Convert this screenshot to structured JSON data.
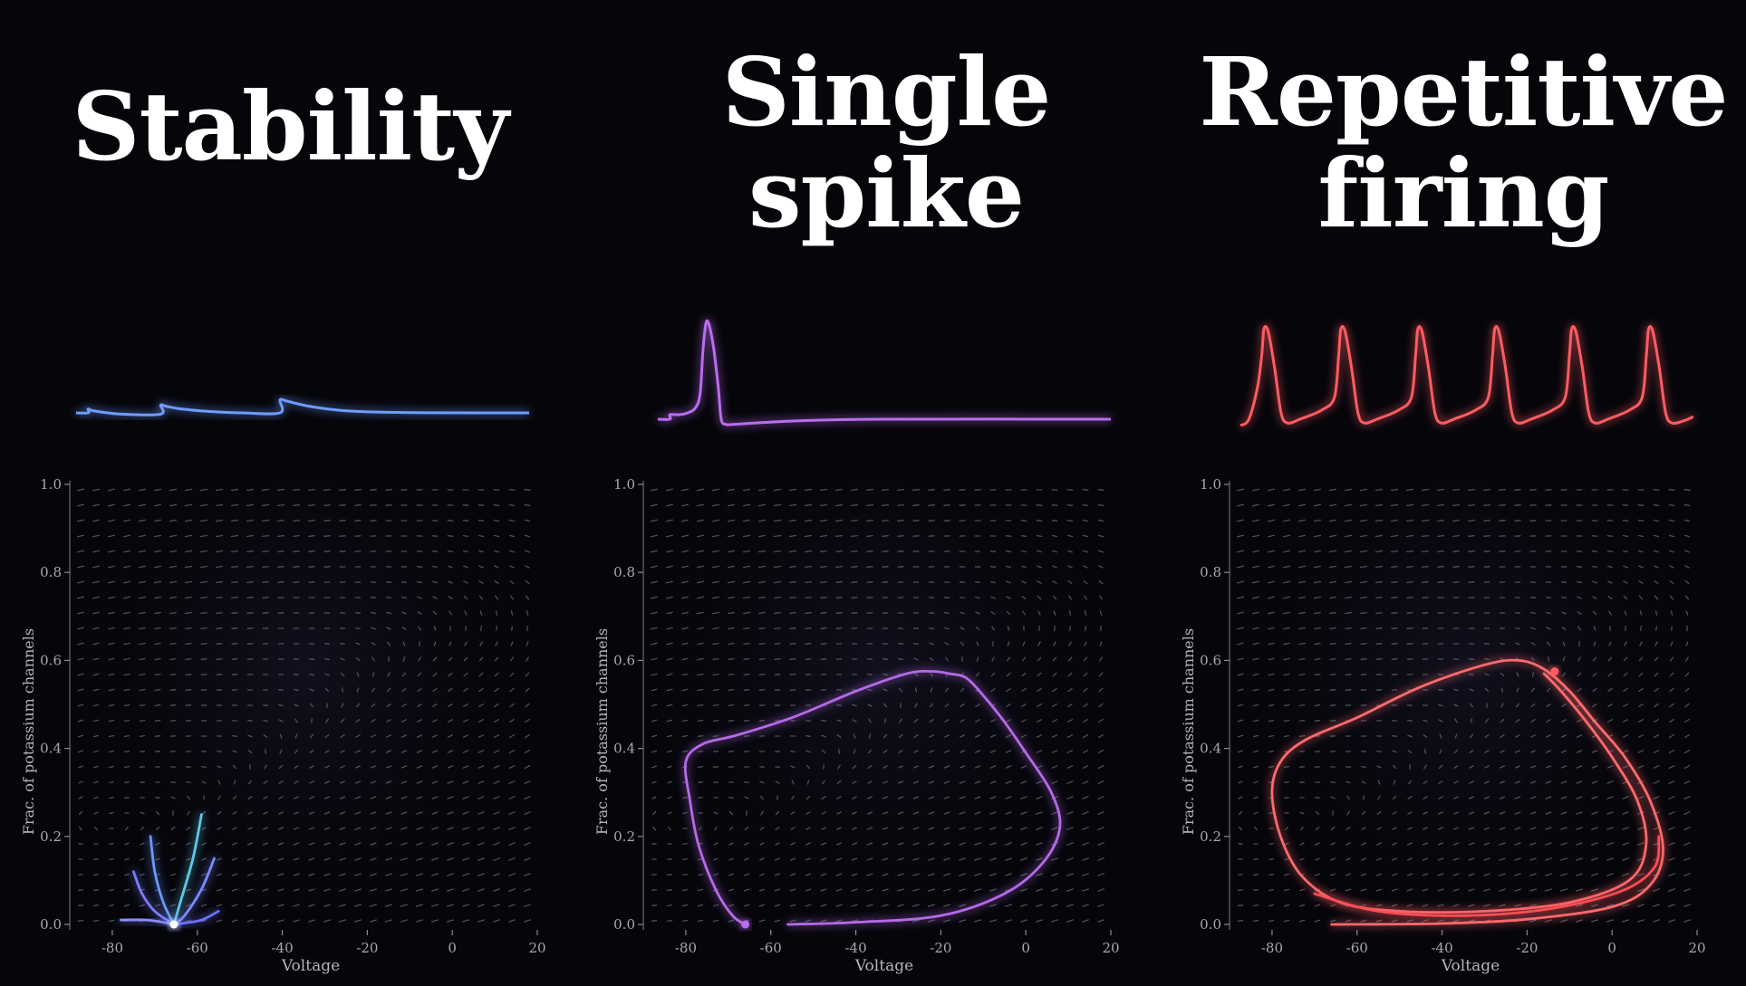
{
  "chart_data": [
    {
      "type": "line",
      "title_lines": [
        "Stability"
      ],
      "xlabel": "Voltage",
      "ylabel": "Frac. of potassium channels",
      "xlim": [
        -90,
        20
      ],
      "ylim": [
        0,
        1.0
      ],
      "xticks": [
        "-80",
        "-60",
        "-40",
        "-20",
        "0",
        "20"
      ],
      "yticks": [
        "0.0",
        "0.2",
        "0.4",
        "0.6",
        "0.8",
        "1.0"
      ],
      "grid": false,
      "color": "#6f9bff",
      "trace": [
        [
          0,
          0
        ],
        [
          8,
          0
        ],
        [
          8,
          3
        ],
        [
          12,
          1.5
        ],
        [
          30,
          -1
        ],
        [
          56,
          -1
        ],
        [
          56,
          6
        ],
        [
          60,
          5
        ],
        [
          70,
          3
        ],
        [
          90,
          1
        ],
        [
          110,
          0
        ],
        [
          135,
          0
        ],
        [
          135,
          10
        ],
        [
          140,
          9
        ],
        [
          155,
          5
        ],
        [
          175,
          2
        ],
        [
          200,
          0.6
        ],
        [
          240,
          0.1
        ],
        [
          300,
          0
        ]
      ],
      "trajectories": [
        {
          "color": "#8c8cff",
          "points": [
            [
              -78,
              0.01
            ],
            [
              -72,
              0.01
            ],
            [
              -68,
              0.005
            ],
            [
              -65.5,
              0
            ]
          ]
        },
        {
          "color": "#7b7cff",
          "points": [
            [
              -75,
              0.12
            ],
            [
              -73,
              0.07
            ],
            [
              -70,
              0.03
            ],
            [
              -65.5,
              0
            ]
          ]
        },
        {
          "color": "#6a98ff",
          "points": [
            [
              -71,
              0.2
            ],
            [
              -70,
              0.12
            ],
            [
              -68,
              0.05
            ],
            [
              -65.5,
              0
            ]
          ]
        },
        {
          "color": "#5fc8e6",
          "points": [
            [
              -59,
              0.25
            ],
            [
              -61,
              0.15
            ],
            [
              -64,
              0.05
            ],
            [
              -65.5,
              0
            ]
          ]
        },
        {
          "color": "#7a8cff",
          "points": [
            [
              -56,
              0.15
            ],
            [
              -59,
              0.08
            ],
            [
              -63,
              0.02
            ],
            [
              -65.5,
              0
            ]
          ]
        },
        {
          "color": "#6c70ff",
          "points": [
            [
              -55,
              0.03
            ],
            [
              -59,
              0.01
            ],
            [
              -63,
              0.003
            ],
            [
              -65.5,
              0
            ]
          ]
        }
      ],
      "fixed_point": [
        -65.5,
        0
      ]
    },
    {
      "type": "line",
      "title_lines": [
        "Single",
        "spike"
      ],
      "xlabel": "Voltage",
      "ylabel": "Frac. of potassium channels",
      "xlim": [
        -90,
        20
      ],
      "ylim": [
        0,
        1.0
      ],
      "xticks": [
        "-80",
        "-60",
        "-40",
        "-20",
        "0",
        "20"
      ],
      "yticks": [
        "0.0",
        "0.2",
        "0.4",
        "0.6",
        "0.8",
        "1.0"
      ],
      "grid": false,
      "color": "#bb6cf0",
      "trace": [
        [
          0,
          0
        ],
        [
          8,
          0
        ],
        [
          8,
          3.5
        ],
        [
          14,
          3.5
        ],
        [
          20,
          5
        ],
        [
          25,
          9
        ],
        [
          28,
          20
        ],
        [
          30,
          55
        ],
        [
          32,
          75
        ],
        [
          34,
          73
        ],
        [
          37,
          55
        ],
        [
          40,
          25
        ],
        [
          42,
          0
        ],
        [
          45,
          -4
        ],
        [
          50,
          -4
        ],
        [
          70,
          -2.5
        ],
        [
          100,
          -1
        ],
        [
          150,
          0
        ],
        [
          300,
          0
        ]
      ],
      "trajectories": [
        {
          "color": "#b56ae8",
          "points": [
            [
              -56,
              0
            ],
            [
              -40,
              0.005
            ],
            [
              -20,
              0.02
            ],
            [
              -5,
              0.07
            ],
            [
              4,
              0.14
            ],
            [
              8,
              0.22
            ],
            [
              6,
              0.3
            ],
            [
              0,
              0.39
            ],
            [
              -5,
              0.46
            ],
            [
              -10,
              0.52
            ],
            [
              -14,
              0.56
            ],
            [
              -18,
              0.57
            ],
            [
              -22,
              0.575
            ],
            [
              -28,
              0.57
            ],
            [
              -40,
              0.53
            ],
            [
              -55,
              0.47
            ],
            [
              -68,
              0.43
            ],
            [
              -76,
              0.41
            ],
            [
              -80,
              0.37
            ],
            [
              -79,
              0.28
            ],
            [
              -77,
              0.18
            ],
            [
              -73,
              0.08
            ],
            [
              -69,
              0.02
            ],
            [
              -66,
              0
            ]
          ]
        }
      ],
      "fixed_point": [
        -66,
        0
      ]
    },
    {
      "type": "line",
      "title_lines": [
        "Repetitive",
        "firing"
      ],
      "xlabel": "Voltage",
      "ylabel": "Frac. of potassium channels",
      "xlim": [
        -90,
        20
      ],
      "ylim": [
        0,
        1.0
      ],
      "xticks": [
        "-80",
        "-60",
        "-40",
        "-20",
        "0",
        "20"
      ],
      "yticks": [
        "0.0",
        "0.2",
        "0.4",
        "0.6",
        "0.8",
        "1.0"
      ],
      "grid": false,
      "color": "#ff5c62",
      "trace": [
        [
          0,
          0
        ],
        [
          4,
          5
        ],
        [
          8,
          30
        ],
        [
          10,
          55
        ],
        [
          11,
          75
        ],
        [
          13,
          73
        ],
        [
          16,
          45
        ],
        [
          19,
          10
        ],
        [
          22,
          2
        ],
        [
          28,
          5
        ],
        [
          38,
          12
        ],
        [
          44,
          22
        ],
        [
          46,
          55
        ],
        [
          47,
          75
        ],
        [
          49,
          73
        ],
        [
          52,
          45
        ],
        [
          55,
          10
        ],
        [
          58,
          2
        ],
        [
          64,
          5
        ],
        [
          74,
          12
        ],
        [
          80,
          22
        ],
        [
          82,
          55
        ],
        [
          83,
          75
        ],
        [
          85,
          73
        ],
        [
          88,
          45
        ],
        [
          91,
          10
        ],
        [
          94,
          2
        ],
        [
          100,
          5
        ],
        [
          110,
          12
        ],
        [
          116,
          22
        ],
        [
          118,
          55
        ],
        [
          119,
          75
        ],
        [
          121,
          73
        ],
        [
          124,
          45
        ],
        [
          127,
          10
        ],
        [
          130,
          2
        ],
        [
          136,
          5
        ],
        [
          146,
          12
        ],
        [
          152,
          22
        ],
        [
          154,
          55
        ],
        [
          155,
          75
        ],
        [
          157,
          73
        ],
        [
          160,
          45
        ],
        [
          163,
          10
        ],
        [
          166,
          2
        ],
        [
          172,
          5
        ],
        [
          182,
          12
        ],
        [
          188,
          22
        ],
        [
          190,
          55
        ],
        [
          191,
          75
        ],
        [
          193,
          73
        ],
        [
          196,
          45
        ],
        [
          199,
          10
        ],
        [
          202,
          2
        ],
        [
          208,
          4
        ],
        [
          212,
          7
        ]
      ],
      "trajectories": [
        {
          "color": "#ff6a6e",
          "points": [
            [
              -66,
              0
            ],
            [
              -40,
              0.002
            ],
            [
              -20,
              0.012
            ],
            [
              0,
              0.04
            ],
            [
              9,
              0.09
            ],
            [
              12,
              0.17
            ],
            [
              9,
              0.28
            ],
            [
              3,
              0.38
            ],
            [
              -4,
              0.46
            ],
            [
              -10,
              0.53
            ],
            [
              -16,
              0.58
            ],
            [
              -22,
              0.6
            ],
            [
              -30,
              0.59
            ],
            [
              -45,
              0.54
            ],
            [
              -60,
              0.47
            ],
            [
              -72,
              0.42
            ],
            [
              -78,
              0.37
            ],
            [
              -80,
              0.3
            ],
            [
              -78,
              0.2
            ],
            [
              -73,
              0.11
            ],
            [
              -64,
              0.05
            ],
            [
              -50,
              0.03
            ],
            [
              -30,
              0.03
            ],
            [
              -10,
              0.05
            ],
            [
              4,
              0.1
            ],
            [
              8,
              0.18
            ],
            [
              6,
              0.28
            ],
            [
              0,
              0.38
            ],
            [
              -6,
              0.46
            ],
            [
              -12,
              0.53
            ],
            [
              -16,
              0.57
            ]
          ]
        },
        {
          "color": "#ff4e55",
          "points": [
            [
              -70,
              0.07
            ],
            [
              -55,
              0.03
            ],
            [
              -35,
              0.02
            ],
            [
              -15,
              0.035
            ],
            [
              2,
              0.075
            ],
            [
              10,
              0.13
            ],
            [
              11,
              0.2
            ]
          ]
        }
      ],
      "fixed_point": [
        -13.5,
        0.575
      ]
    }
  ]
}
